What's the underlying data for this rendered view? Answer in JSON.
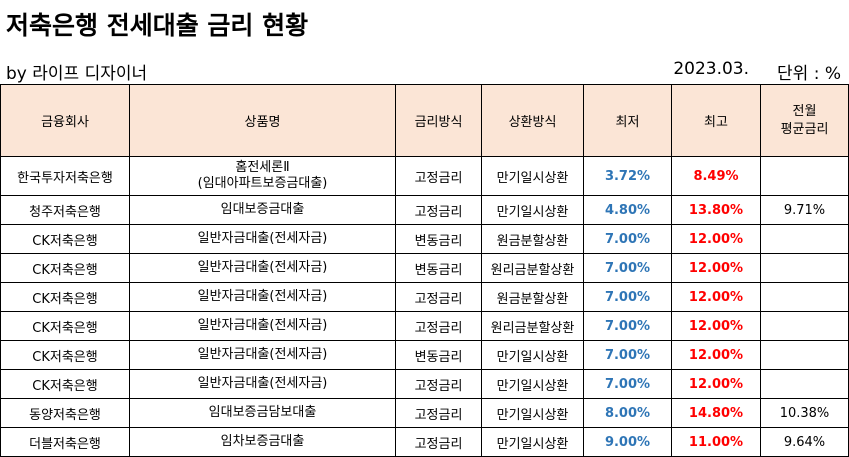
{
  "title": "저축은행 전세대출 금리 현황",
  "byline": "by 라이프 디자이너",
  "date": "2023.03.",
  "unit": "단위 : %",
  "headers": {
    "company": "금융회사",
    "product": "상품명",
    "rate_type": "금리방식",
    "repayment": "상환방식",
    "min": "최저",
    "max": "최고",
    "avg_line1": "전월",
    "avg_line2": "평균금리"
  },
  "rows": [
    {
      "company": "한국투자저축은행",
      "product_line1": "홈전세론Ⅱ",
      "product_line2": "(임대아파트보증금대출)",
      "rate_type": "고정금리",
      "repayment": "만기일시상환",
      "min": "3.72%",
      "max": "8.49%",
      "avg": ""
    },
    {
      "company": "청주저축은행",
      "product_line1": "임대보증금대출",
      "product_line2": "",
      "rate_type": "고정금리",
      "repayment": "만기일시상환",
      "min": "4.80%",
      "max": "13.80%",
      "avg": "9.71%"
    },
    {
      "company": "CK저축은행",
      "product_line1": "일반자금대출(전세자금)",
      "product_line2": "",
      "rate_type": "변동금리",
      "repayment": "원금분할상환",
      "min": "7.00%",
      "max": "12.00%",
      "avg": ""
    },
    {
      "company": "CK저축은행",
      "product_line1": "일반자금대출(전세자금)",
      "product_line2": "",
      "rate_type": "변동금리",
      "repayment": "원리금분할상환",
      "min": "7.00%",
      "max": "12.00%",
      "avg": ""
    },
    {
      "company": "CK저축은행",
      "product_line1": "일반자금대출(전세자금)",
      "product_line2": "",
      "rate_type": "고정금리",
      "repayment": "원금분할상환",
      "min": "7.00%",
      "max": "12.00%",
      "avg": ""
    },
    {
      "company": "CK저축은행",
      "product_line1": "일반자금대출(전세자금)",
      "product_line2": "",
      "rate_type": "고정금리",
      "repayment": "원리금분할상환",
      "min": "7.00%",
      "max": "12.00%",
      "avg": ""
    },
    {
      "company": "CK저축은행",
      "product_line1": "일반자금대출(전세자금)",
      "product_line2": "",
      "rate_type": "변동금리",
      "repayment": "만기일시상환",
      "min": "7.00%",
      "max": "12.00%",
      "avg": ""
    },
    {
      "company": "CK저축은행",
      "product_line1": "일반자금대출(전세자금)",
      "product_line2": "",
      "rate_type": "고정금리",
      "repayment": "만기일시상환",
      "min": "7.00%",
      "max": "12.00%",
      "avg": ""
    },
    {
      "company": "동양저축은행",
      "product_line1": "임대보증금담보대출",
      "product_line2": "",
      "rate_type": "고정금리",
      "repayment": "만기일시상환",
      "min": "8.00%",
      "max": "14.80%",
      "avg": "10.38%"
    },
    {
      "company": "더블저축은행",
      "product_line1": "임차보증금대출",
      "product_line2": "",
      "rate_type": "고정금리",
      "repayment": "만기일시상환",
      "min": "9.00%",
      "max": "11.00%",
      "avg": "9.64%"
    }
  ]
}
